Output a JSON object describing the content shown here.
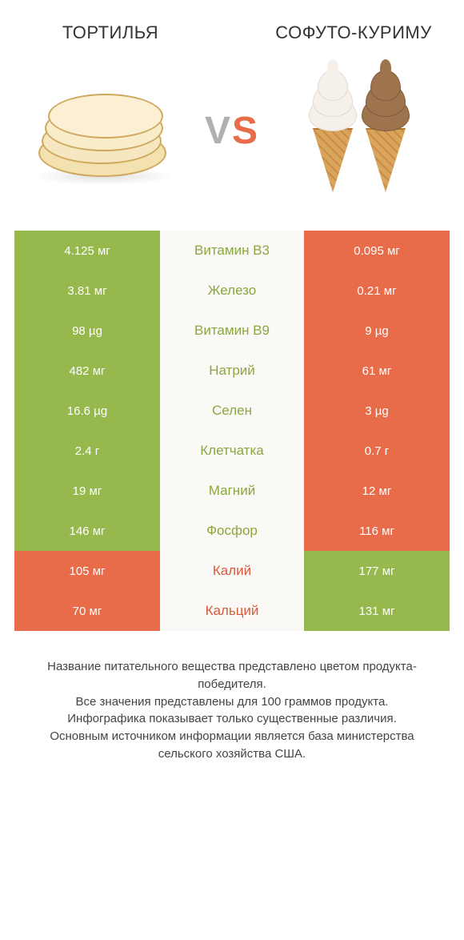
{
  "header": {
    "left_title": "ТОРТИЛЬЯ",
    "right_title": "СОФУТО-КУРИМУ",
    "vs": "VS"
  },
  "colors": {
    "left_win": "#97b84d",
    "right_win": "#e86b4a",
    "mid_bg": "#fbf9f6",
    "mid_left_text": "#8aa740",
    "mid_right_text": "#da5a3e"
  },
  "rows": [
    {
      "nutrient": "Витамин B3",
      "left": "4.125 мг",
      "right": "0.095 мг",
      "winner": "left"
    },
    {
      "nutrient": "Железо",
      "left": "3.81 мг",
      "right": "0.21 мг",
      "winner": "left"
    },
    {
      "nutrient": "Витамин B9",
      "left": "98 µg",
      "right": "9 µg",
      "winner": "left"
    },
    {
      "nutrient": "Натрий",
      "left": "482 мг",
      "right": "61 мг",
      "winner": "left"
    },
    {
      "nutrient": "Селен",
      "left": "16.6 µg",
      "right": "3 µg",
      "winner": "left"
    },
    {
      "nutrient": "Клетчатка",
      "left": "2.4 г",
      "right": "0.7 г",
      "winner": "left"
    },
    {
      "nutrient": "Магний",
      "left": "19 мг",
      "right": "12 мг",
      "winner": "left"
    },
    {
      "nutrient": "Фосфор",
      "left": "146 мг",
      "right": "116 мг",
      "winner": "left"
    },
    {
      "nutrient": "Калий",
      "left": "105 мг",
      "right": "177 мг",
      "winner": "right"
    },
    {
      "nutrient": "Кальций",
      "left": "70 мг",
      "right": "131 мг",
      "winner": "right"
    }
  ],
  "footer": {
    "l1": "Название питательного вещества представлено цветом продукта-победителя.",
    "l2": "Все значения представлены для 100 граммов продукта.",
    "l3": "Инфографика показывает только существенные различия.",
    "l4": "Основным источником информации является база министерства сельского хозяйства США."
  }
}
